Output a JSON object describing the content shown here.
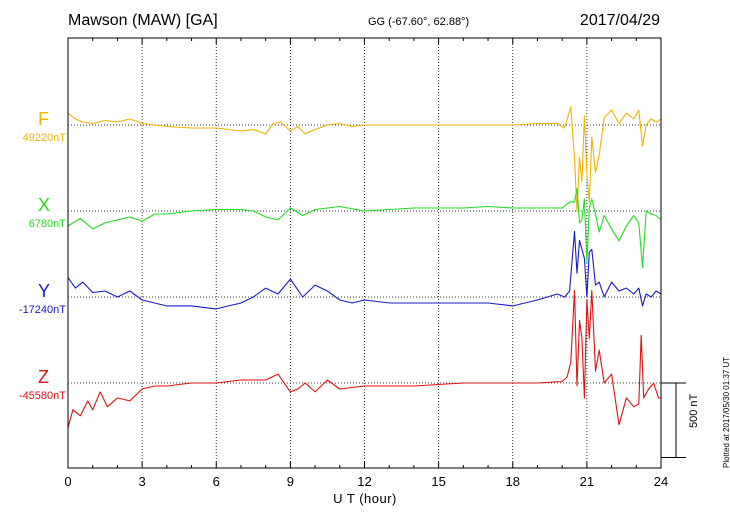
{
  "header": {
    "title": "Mawson (MAW)  [GA]",
    "coords": "GG (-67.60°,  62.88°)",
    "date": "2017/04/29"
  },
  "footer": {
    "plotted": "Plotted at 2017/05/30 01:37 UT"
  },
  "chart_data": {
    "type": "line",
    "title": "Mawson (MAW)  [GA]",
    "xlabel": "U T (hour)",
    "xlim": [
      0,
      24
    ],
    "xticks": [
      0,
      3,
      6,
      9,
      12,
      15,
      18,
      21,
      24
    ],
    "xtick_labels": [
      "0",
      "3",
      "6",
      "9",
      "12",
      "15",
      "18",
      "21",
      "24"
    ],
    "grid": "dotted vertical lines every 3 hours, dotted baseline per component",
    "scale_bar_nT": 500,
    "scale_bar_label": "500 nT",
    "series": [
      {
        "name": "F",
        "baseline_label": "49220nT",
        "baseline_nT": 49220,
        "color": "#f0b400",
        "x": [
          0,
          0.3,
          0.6,
          1.0,
          1.5,
          2.0,
          2.5,
          3.0,
          3.5,
          4.0,
          5.0,
          6.0,
          6.5,
          7.0,
          7.5,
          8.0,
          8.3,
          8.6,
          9.0,
          9.3,
          9.6,
          10.0,
          10.5,
          11.0,
          11.5,
          12.0,
          13.0,
          14.0,
          15.0,
          16.0,
          17.0,
          18.0,
          19.0,
          19.8,
          20.1,
          20.35,
          20.5,
          20.6,
          20.7,
          20.8,
          20.9,
          21.0,
          21.1,
          21.2,
          21.35,
          21.5,
          21.7,
          22.0,
          22.3,
          22.6,
          22.9,
          23.1,
          23.25,
          23.4,
          23.6,
          23.8,
          24.0
        ],
        "values": [
          80,
          40,
          20,
          10,
          30,
          20,
          40,
          10,
          0,
          -10,
          -20,
          -20,
          -30,
          -40,
          -30,
          -60,
          10,
          20,
          -40,
          -10,
          -60,
          -30,
          0,
          10,
          -10,
          0,
          0,
          0,
          0,
          0,
          0,
          0,
          10,
          10,
          -20,
          120,
          -220,
          -580,
          -220,
          -380,
          60,
          -330,
          -520,
          -80,
          -320,
          -200,
          50,
          100,
          10,
          80,
          40,
          100,
          -140,
          0,
          40,
          20,
          40
        ]
      },
      {
        "name": "X",
        "baseline_label": "6780nT",
        "baseline_nT": 6780,
        "color": "#22dd22",
        "x": [
          0,
          0.5,
          1.0,
          1.5,
          2.0,
          2.5,
          3.0,
          3.5,
          4.0,
          5.0,
          6.0,
          7.0,
          7.5,
          8.0,
          8.5,
          9.0,
          9.5,
          10.0,
          11.0,
          12.0,
          13.0,
          14.0,
          15.0,
          16.0,
          17.0,
          18.0,
          19.0,
          20.0,
          20.3,
          20.5,
          20.6,
          20.7,
          20.8,
          20.9,
          21.0,
          21.1,
          21.2,
          21.35,
          21.5,
          21.7,
          22.0,
          22.3,
          22.6,
          22.9,
          23.1,
          23.25,
          23.4,
          23.6,
          23.8,
          24.0
        ],
        "values": [
          -100,
          -50,
          -120,
          -80,
          -60,
          -40,
          -70,
          -20,
          -20,
          0,
          10,
          10,
          0,
          -40,
          -60,
          20,
          -30,
          10,
          30,
          0,
          10,
          20,
          20,
          20,
          30,
          20,
          20,
          20,
          60,
          60,
          150,
          -80,
          -60,
          80,
          -350,
          20,
          80,
          -20,
          -140,
          -30,
          -120,
          -200,
          -100,
          -30,
          -80,
          -380,
          0,
          -20,
          -30,
          -60
        ]
      },
      {
        "name": "Y",
        "baseline_label": "-17240nT",
        "baseline_nT": -17240,
        "color": "#1a1acc",
        "x": [
          0,
          0.3,
          0.6,
          1.0,
          1.5,
          2.0,
          2.5,
          3.0,
          3.5,
          4.0,
          5.0,
          6.0,
          6.5,
          7.0,
          7.5,
          8.0,
          8.5,
          9.0,
          9.5,
          10.0,
          10.5,
          11.0,
          11.5,
          12.0,
          13.0,
          14.0,
          15.0,
          16.0,
          17.0,
          18.0,
          19.0,
          19.8,
          20.1,
          20.3,
          20.5,
          20.6,
          20.7,
          20.9,
          21.0,
          21.1,
          21.2,
          21.35,
          21.5,
          21.7,
          22.0,
          22.3,
          22.6,
          22.9,
          23.1,
          23.25,
          23.4,
          23.6,
          23.8,
          24.0
        ],
        "values": [
          130,
          60,
          100,
          30,
          40,
          0,
          40,
          -20,
          -40,
          -60,
          -60,
          -80,
          -60,
          -40,
          0,
          60,
          20,
          120,
          0,
          80,
          40,
          -20,
          -40,
          -20,
          -40,
          -40,
          -40,
          -40,
          -40,
          -60,
          -20,
          20,
          0,
          40,
          440,
          160,
          380,
          260,
          0,
          300,
          320,
          80,
          100,
          0,
          100,
          40,
          60,
          20,
          60,
          -60,
          20,
          0,
          40,
          20
        ]
      },
      {
        "name": "Z",
        "baseline_label": "-45580nT",
        "baseline_nT": -45580,
        "color": "#dd1111",
        "x": [
          0,
          0.2,
          0.5,
          0.8,
          1.0,
          1.3,
          1.6,
          2.0,
          2.5,
          3.0,
          3.5,
          4.0,
          5.0,
          6.0,
          7.0,
          8.0,
          8.5,
          9.0,
          9.3,
          9.6,
          10.0,
          10.5,
          11.0,
          12.0,
          13.0,
          14.0,
          15.0,
          16.0,
          17.0,
          18.0,
          19.0,
          20.0,
          20.2,
          20.35,
          20.5,
          20.6,
          20.7,
          20.8,
          20.9,
          21.0,
          21.1,
          21.2,
          21.35,
          21.5,
          21.7,
          22.0,
          22.3,
          22.6,
          22.9,
          23.1,
          23.2,
          23.3,
          23.5,
          23.7,
          23.9,
          24.0
        ],
        "values": [
          -300,
          -180,
          -220,
          -120,
          -180,
          -60,
          -160,
          -100,
          -120,
          -40,
          -20,
          -20,
          0,
          0,
          20,
          20,
          60,
          -60,
          -40,
          0,
          -60,
          20,
          -40,
          -20,
          -20,
          -20,
          -10,
          0,
          0,
          0,
          0,
          10,
          40,
          140,
          620,
          -20,
          420,
          300,
          -100,
          560,
          300,
          620,
          80,
          220,
          0,
          60,
          -280,
          -100,
          -160,
          -140,
          320,
          -100,
          -40,
          0,
          -100,
          -100
        ]
      }
    ]
  }
}
